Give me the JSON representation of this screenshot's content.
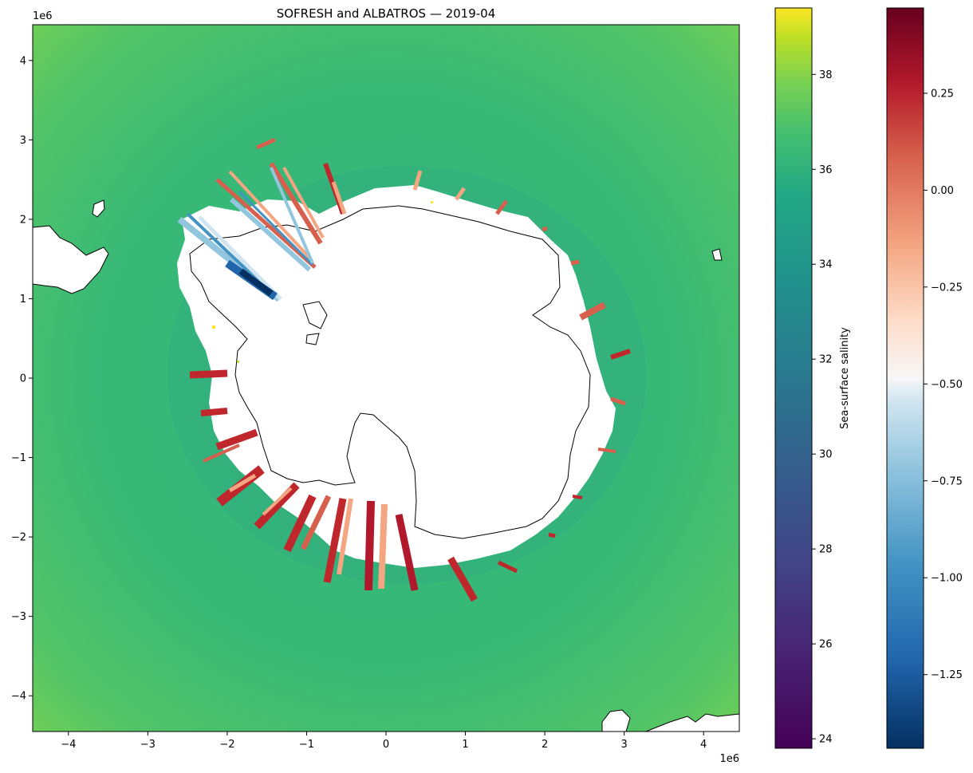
{
  "chart_data": {
    "type": "heatmap",
    "title": "SOFRESH and ALBATROS — 2019-04",
    "projection": "south-polar-stereographic",
    "xlabel": "",
    "ylabel": "",
    "x_offset_label": "1e6",
    "y_offset_label": "1e6",
    "xlim": [
      -4.45,
      4.45
    ],
    "ylim": [
      -4.45,
      4.45
    ],
    "x_ticks": [
      -4,
      -3,
      -2,
      -1,
      0,
      1,
      2,
      3,
      4
    ],
    "y_ticks": [
      -4,
      -3,
      -2,
      -1,
      0,
      1,
      2,
      3,
      4
    ],
    "x_tick_labels": [
      "−4",
      "−3",
      "−2",
      "−1",
      "0",
      "1",
      "2",
      "3",
      "4"
    ],
    "y_tick_labels": [
      "−4",
      "−3",
      "−2",
      "−1",
      "0",
      "1",
      "2",
      "3",
      "4"
    ],
    "grid": false,
    "colorbars": [
      {
        "name": "salinity",
        "label": "Sea-surface salinity",
        "colormap": "viridis",
        "range": [
          23.8,
          39.4
        ],
        "ticks": [
          24,
          26,
          28,
          30,
          32,
          34,
          36,
          38
        ],
        "tick_labels": [
          "24",
          "26",
          "28",
          "30",
          "32",
          "34",
          "36",
          "38"
        ]
      },
      {
        "name": "anomaly",
        "label": "",
        "colormap": "RdBu_r",
        "range": [
          -1.44,
          0.47
        ],
        "ticks": [
          -1.25,
          -1.0,
          -0.75,
          -0.5,
          -0.25,
          0.0,
          0.25
        ],
        "tick_labels": [
          "−1.25",
          "−1.00",
          "−0.75",
          "−0.50",
          "−0.25",
          "0.00",
          "0.25"
        ]
      }
    ],
    "background_salinity": 33.9,
    "overlay_tracks_mean_anomaly": -0.1
  },
  "colors": {
    "ocean": "#35b778",
    "ocean_light": "#6ccd5a",
    "land": "#ffffff",
    "coast": "#000000",
    "anomaly_red": "#c0272d",
    "anomaly_salmon": "#f4a582",
    "anomaly_blue": "#2166ac"
  }
}
